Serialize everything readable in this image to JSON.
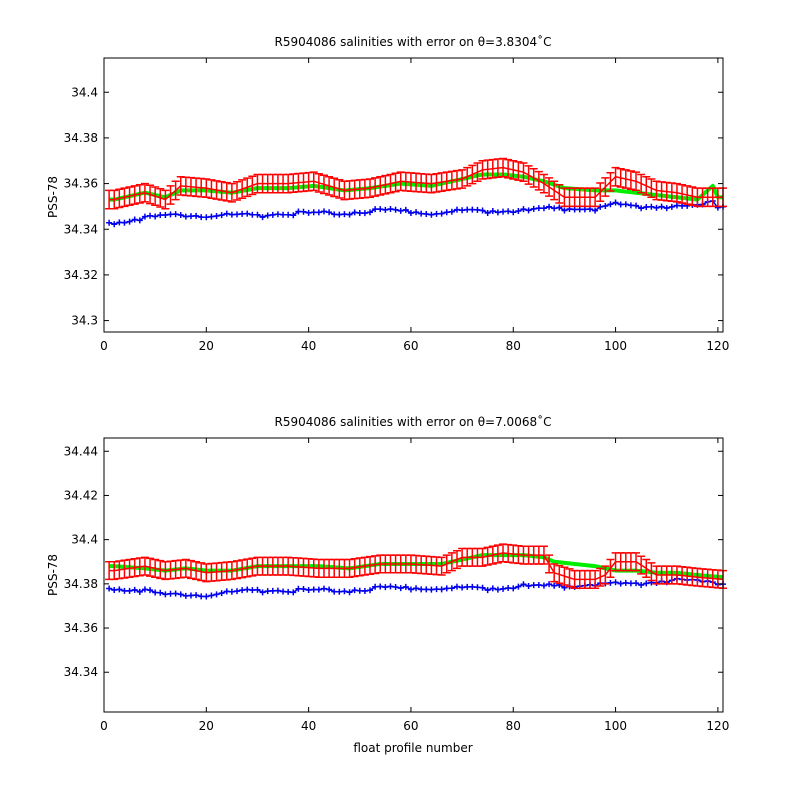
{
  "chart_data": [
    {
      "type": "line",
      "title": "R5904086 salinities with error on θ=3.8304˚C",
      "xlabel": "",
      "ylabel": "PSS-78",
      "xlim": [
        0,
        121
      ],
      "ylim": [
        34.295,
        34.415
      ],
      "xticks": [
        "0",
        "20",
        "40",
        "60",
        "80",
        "100",
        "120"
      ],
      "yticks": [
        "34.3",
        "34.32",
        "34.34",
        "34.36",
        "34.38",
        "34.4"
      ],
      "colors": {
        "green": "#00ee00",
        "red": "#ff0000",
        "blue": "#0000ee"
      },
      "knots": {
        "x": [
          2,
          8,
          12,
          15,
          20,
          25,
          30,
          36,
          41,
          47,
          52,
          58,
          64,
          70,
          74,
          78,
          82,
          86,
          90,
          96,
          100,
          104,
          108,
          112,
          116,
          119,
          120
        ],
        "green": [
          34.353,
          34.356,
          34.354,
          34.357,
          34.357,
          34.356,
          34.358,
          34.358,
          34.359,
          34.357,
          34.358,
          34.36,
          34.359,
          34.362,
          34.364,
          34.364,
          34.363,
          34.361,
          34.358,
          34.357,
          34.357,
          34.356,
          34.355,
          34.354,
          34.353,
          34.359,
          34.354
        ],
        "red": [
          34.353,
          34.356,
          34.353,
          34.359,
          34.358,
          34.356,
          34.36,
          34.36,
          34.361,
          34.357,
          34.358,
          34.361,
          34.36,
          34.362,
          34.366,
          34.367,
          34.365,
          34.36,
          34.354,
          34.354,
          34.363,
          34.361,
          34.357,
          34.356,
          34.354,
          34.354,
          34.354
        ],
        "blue": [
          34.343,
          34.345,
          34.346,
          34.346,
          34.346,
          34.346,
          34.346,
          34.347,
          34.347,
          34.347,
          34.348,
          34.348,
          34.347,
          34.348,
          34.348,
          34.348,
          34.348,
          34.349,
          34.349,
          34.349,
          34.351,
          34.35,
          34.35,
          34.35,
          34.35,
          34.352,
          34.35
        ]
      },
      "errorbar": 0.004
    },
    {
      "type": "line",
      "title": "R5904086 salinities with error on θ=7.0068˚C",
      "xlabel": "float profile number",
      "ylabel": "PSS-78",
      "xlim": [
        0,
        121
      ],
      "ylim": [
        34.322,
        34.446
      ],
      "xticks": [
        "0",
        "20",
        "40",
        "60",
        "80",
        "100",
        "120"
      ],
      "yticks": [
        "34.34",
        "34.36",
        "34.38",
        "34.4",
        "34.42",
        "34.44"
      ],
      "colors": {
        "green": "#00ee00",
        "red": "#ff0000",
        "blue": "#0000ee"
      },
      "knots": {
        "x": [
          2,
          8,
          12,
          16,
          20,
          25,
          30,
          36,
          42,
          48,
          54,
          60,
          66,
          70,
          74,
          78,
          82,
          86,
          88,
          92,
          96,
          98,
          100,
          104,
          108,
          112,
          116,
          121
        ],
        "green": [
          34.388,
          34.387,
          34.386,
          34.387,
          34.386,
          34.386,
          34.388,
          34.388,
          34.388,
          34.387,
          34.389,
          34.389,
          34.389,
          34.391,
          34.393,
          34.393,
          34.393,
          34.392,
          34.39,
          34.389,
          34.388,
          34.387,
          34.386,
          34.386,
          34.385,
          34.385,
          34.384,
          34.383
        ],
        "red": [
          34.386,
          34.388,
          34.386,
          34.387,
          34.385,
          34.386,
          34.388,
          34.388,
          34.387,
          34.387,
          34.389,
          34.389,
          34.388,
          34.392,
          34.392,
          34.394,
          34.393,
          34.393,
          34.385,
          34.382,
          34.382,
          34.384,
          34.39,
          34.39,
          34.384,
          34.384,
          34.383,
          34.382
        ],
        "blue": [
          34.378,
          34.377,
          34.375,
          34.375,
          34.375,
          34.376,
          34.377,
          34.377,
          34.377,
          34.377,
          34.378,
          34.378,
          34.378,
          34.378,
          34.378,
          34.378,
          34.379,
          34.379,
          34.379,
          34.379,
          34.38,
          34.38,
          34.38,
          34.38,
          34.381,
          34.382,
          34.381,
          34.38
        ]
      },
      "errorbar": 0.004
    }
  ]
}
